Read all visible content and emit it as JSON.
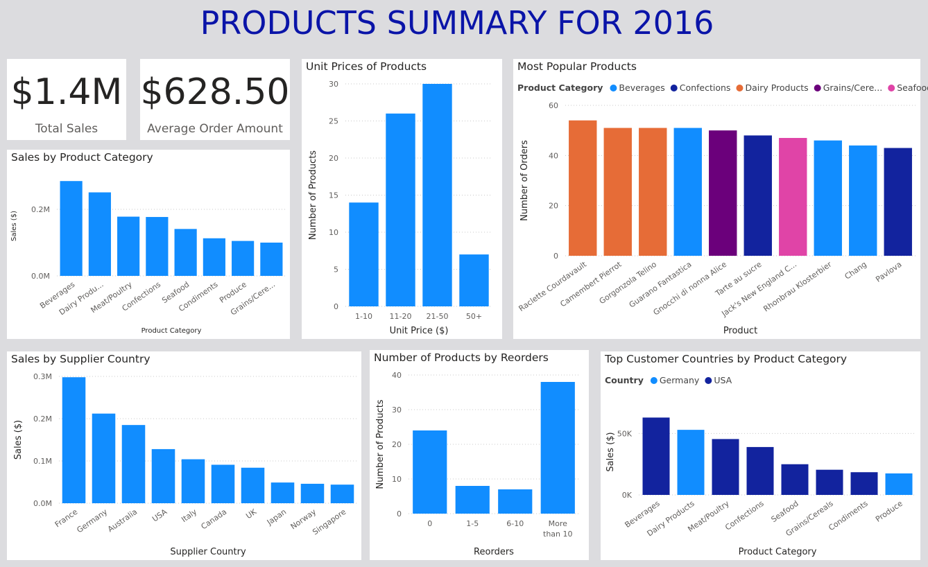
{
  "page_title": "PRODUCTS SUMMARY FOR 2016",
  "colors": {
    "title": "#0a14a8",
    "Beverages": "#118dff",
    "Confections": "#12239e",
    "Dairy Products": "#e66c37",
    "Grains/Cereals": "#6b007b",
    "Seafood": "#e044a7",
    "Germany": "#118dff",
    "USA": "#12239e",
    "bar": "#118dff"
  },
  "kpis": [
    {
      "value": "$1.4M",
      "label": "Total Sales"
    },
    {
      "value": "$628.50",
      "label": "Average Order Amount"
    }
  ],
  "chart_data": [
    {
      "id": "sales_by_category",
      "type": "bar",
      "title": "Sales by Product Category",
      "xlabel": "Product Category",
      "ylabel": "Sales ($)",
      "categories": [
        "Beverages",
        "Dairy Produ...",
        "Meat/Poultry",
        "Confections",
        "Seafood",
        "Condiments",
        "Produce",
        "Grains/Cere..."
      ],
      "values": [
        285000,
        251000,
        178000,
        177000,
        141000,
        113000,
        105000,
        100000
      ],
      "yticks": [
        {
          "v": 0,
          "label": "0.0M"
        },
        {
          "v": 200000,
          "label": "0.2M"
        }
      ],
      "ylim": [
        0,
        300000
      ],
      "grid": true
    },
    {
      "id": "unit_prices",
      "type": "bar",
      "title": "Unit Prices of Products",
      "xlabel": "Unit Price ($)",
      "ylabel": "Number of Products",
      "categories": [
        "1-10",
        "11-20",
        "21-50",
        "50+"
      ],
      "values": [
        14,
        26,
        30,
        7
      ],
      "yticks": [
        {
          "v": 0,
          "label": "0"
        },
        {
          "v": 5,
          "label": "5"
        },
        {
          "v": 10,
          "label": "10"
        },
        {
          "v": 15,
          "label": "15"
        },
        {
          "v": 20,
          "label": "20"
        },
        {
          "v": 25,
          "label": "25"
        },
        {
          "v": 30,
          "label": "30"
        }
      ],
      "ylim": [
        0,
        30
      ],
      "grid": true
    },
    {
      "id": "popular_products",
      "type": "bar",
      "title": "Most Popular Products",
      "xlabel": "Product",
      "ylabel": "Number of Orders",
      "legend_title": "Product Category",
      "legend": [
        "Beverages",
        "Confections",
        "Dairy Products",
        "Grains/Cere...",
        "Seafood"
      ],
      "legend_keys": [
        "Beverages",
        "Confections",
        "Dairy Products",
        "Grains/Cereals",
        "Seafood"
      ],
      "categories": [
        "Raclette Courdavault",
        "Camembert Pierrot",
        "Gorgonzola Telino",
        "Guarano Fantastica",
        "Gnocchi di nonna Alice",
        "Tarte au sucre",
        "Jack's New England C...",
        "Rhonbrau Klosterbier",
        "Chang",
        "Pavlova"
      ],
      "values": [
        54,
        51,
        51,
        51,
        50,
        48,
        47,
        46,
        44,
        43
      ],
      "groups": [
        "Dairy Products",
        "Dairy Products",
        "Dairy Products",
        "Beverages",
        "Grains/Cereals",
        "Confections",
        "Seafood",
        "Beverages",
        "Beverages",
        "Confections"
      ],
      "yticks": [
        {
          "v": 0,
          "label": "0"
        },
        {
          "v": 20,
          "label": "20"
        },
        {
          "v": 40,
          "label": "40"
        },
        {
          "v": 60,
          "label": "60"
        }
      ],
      "ylim": [
        0,
        60
      ],
      "grid": true
    },
    {
      "id": "supplier_country",
      "type": "bar",
      "title": "Sales by Supplier Country",
      "xlabel": "Supplier Country",
      "ylabel": "Sales ($)",
      "categories": [
        "France",
        "Germany",
        "Australia",
        "USA",
        "Italy",
        "Canada",
        "UK",
        "Japan",
        "Norway",
        "Singapore"
      ],
      "values": [
        298000,
        212000,
        185000,
        128000,
        104000,
        91000,
        84000,
        49000,
        46000,
        44000
      ],
      "yticks": [
        {
          "v": 0,
          "label": "0.0M"
        },
        {
          "v": 100000,
          "label": "0.1M"
        },
        {
          "v": 200000,
          "label": "0.2M"
        },
        {
          "v": 300000,
          "label": "0.3M"
        }
      ],
      "ylim": [
        0,
        300000
      ],
      "grid": true
    },
    {
      "id": "reorders",
      "type": "bar",
      "title": "Number of Products by Reorders",
      "xlabel": "Reorders",
      "ylabel": "Number of Products",
      "categories": [
        "0",
        "1-5",
        "6-10",
        "More than 10"
      ],
      "category_lines": [
        [
          "0"
        ],
        [
          "1-5"
        ],
        [
          "6-10"
        ],
        [
          "More",
          "than 10"
        ]
      ],
      "values": [
        24,
        8,
        7,
        38
      ],
      "yticks": [
        {
          "v": 0,
          "label": "0"
        },
        {
          "v": 10,
          "label": "10"
        },
        {
          "v": 20,
          "label": "20"
        },
        {
          "v": 30,
          "label": "30"
        },
        {
          "v": 40,
          "label": "40"
        }
      ],
      "ylim": [
        0,
        40
      ],
      "grid": true
    },
    {
      "id": "top_customer_countries",
      "type": "bar",
      "title": "Top Customer Countries by Product Category",
      "xlabel": "Product Category",
      "ylabel": "Sales ($)",
      "legend_title": "Country",
      "legend": [
        "Germany",
        "USA"
      ],
      "legend_keys": [
        "Germany",
        "USA"
      ],
      "categories": [
        "Beverages",
        "Dairy Products",
        "Meat/Poultry",
        "Confections",
        "Seafood",
        "Grains/Cereals",
        "Condiments",
        "Produce"
      ],
      "values": [
        63000,
        53000,
        45500,
        39000,
        25000,
        20500,
        18500,
        17500
      ],
      "groups": [
        "USA",
        "Germany",
        "USA",
        "USA",
        "USA",
        "USA",
        "USA",
        "Germany"
      ],
      "yticks": [
        {
          "v": 0,
          "label": "0K"
        },
        {
          "v": 50000,
          "label": "50K"
        }
      ],
      "ylim": [
        0,
        70000
      ],
      "grid": true
    }
  ]
}
